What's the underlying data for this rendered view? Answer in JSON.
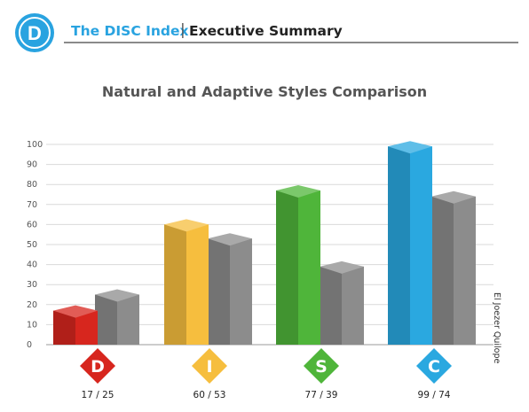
{
  "header": {
    "logo_letter": "D",
    "brand": "The DISC Index",
    "separator": "|",
    "section": "Executive Summary"
  },
  "side_credit": "El Joezer Quilope",
  "chart_data": {
    "type": "bar",
    "title": "Natural and Adaptive Styles Comparison",
    "xlabel": "",
    "ylabel": "",
    "ylim": [
      0,
      100
    ],
    "yticks": [
      0,
      10,
      20,
      30,
      40,
      50,
      60,
      70,
      80,
      90,
      100
    ],
    "grid": true,
    "categories": [
      "D",
      "I",
      "S",
      "C"
    ],
    "pair_labels": [
      "17 / 25",
      "60 / 53",
      "77 / 39",
      "99 / 74"
    ],
    "series": [
      {
        "values": [
          17,
          60,
          77,
          99
        ]
      },
      {
        "values": [
          25,
          53,
          39,
          74
        ]
      }
    ],
    "colors": {
      "D": "#d7261e",
      "I": "#f6be3e",
      "S": "#4fb53a",
      "C": "#2aa8e0",
      "adaptive": "#8c8c8c"
    }
  }
}
